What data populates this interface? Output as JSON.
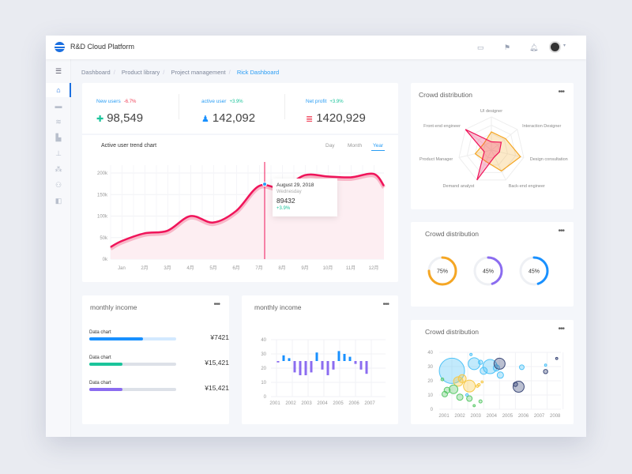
{
  "header": {
    "title": "R&D Cloud Platform",
    "icons": [
      "layout-icon",
      "flag-icon",
      "bell-icon",
      "avatar"
    ]
  },
  "sidebar": {
    "items": [
      {
        "icon": "menu-icon"
      },
      {
        "icon": "home-icon",
        "active": true
      },
      {
        "icon": "monitor-icon"
      },
      {
        "icon": "database-icon"
      },
      {
        "icon": "building-icon"
      },
      {
        "icon": "hierarchy-icon"
      },
      {
        "icon": "network-icon"
      },
      {
        "icon": "users-icon"
      },
      {
        "icon": "panel-icon"
      }
    ]
  },
  "breadcrumb": [
    "Dashboard",
    "Product library",
    "Project management",
    "Rick Dashboard"
  ],
  "stats": [
    {
      "label": "New users",
      "change": "-6.7%",
      "trend": "down",
      "value": "98,549",
      "color": "#1bc49b",
      "icon": "user-add-icon"
    },
    {
      "label": "active user",
      "change": "+3.9%",
      "trend": "up",
      "value": "142,092",
      "color": "#1890ff",
      "icon": "user-icon"
    },
    {
      "label": "Net profit",
      "change": "+3.9%",
      "trend": "up",
      "value": "1420,929",
      "color": "#f0435a",
      "icon": "database-icon"
    }
  ],
  "trend": {
    "title": "Active user trend chart",
    "tabs": [
      "Day",
      "Month",
      "Year"
    ],
    "active_tab": "Year",
    "tooltip": {
      "date": "August 29, 2018",
      "day": "Wednesday",
      "value": "89432",
      "change": "+3.9%"
    }
  },
  "chart_data": [
    {
      "type": "area",
      "title": "Active user trend chart",
      "categories": [
        "Jan",
        "2月",
        "3月",
        "4月",
        "5月",
        "6月",
        "7月",
        "8月",
        "9月",
        "10月",
        "11月",
        "12月"
      ],
      "values": [
        42,
        60,
        66,
        100,
        85,
        112,
        170,
        165,
        195,
        192,
        190,
        198
      ],
      "unit": "k",
      "ylim": [
        0,
        200
      ],
      "yticks": [
        "0k",
        "50k",
        "100k",
        "150k",
        "200k"
      ],
      "color": "#f0145a",
      "grid": true
    },
    {
      "type": "radar",
      "title": "Crowd distribution",
      "axes": [
        "UI designer",
        "Interaction Designer",
        "Design consultation",
        "Back-end engineer",
        "Demand analyst",
        "Product Manager",
        "Front-end engineer"
      ],
      "series": [
        {
          "values": [
            55,
            55,
            90,
            70,
            38,
            50,
            30
          ],
          "color": "#f5a623"
        },
        {
          "values": [
            25,
            38,
            25,
            22,
            100,
            22,
            100
          ],
          "color": "#f0145a"
        }
      ]
    },
    {
      "type": "gauge",
      "title": "Crowd distribution",
      "values": [
        75,
        45,
        45
      ],
      "labels": [
        "75%",
        "45%",
        "45%"
      ],
      "colors": [
        "#f5a623",
        "#8b6cf0",
        "#1890ff"
      ]
    },
    {
      "type": "bar",
      "title": "monthly income",
      "xticks": [
        "2001",
        "2002",
        "2003",
        "2004",
        "2005",
        "2006",
        "2007"
      ],
      "yticks": [
        "0",
        "10",
        "20",
        "30",
        "40"
      ],
      "ylim": [
        0,
        40
      ],
      "bars": [
        [
          24,
          25
        ],
        [
          25,
          29
        ],
        [
          25,
          27
        ],
        [
          17,
          25
        ],
        [
          15,
          25
        ],
        [
          15,
          25
        ],
        [
          17,
          25
        ],
        [
          25,
          31
        ],
        [
          19,
          25
        ],
        [
          15,
          25
        ],
        [
          19,
          25
        ],
        [
          25,
          32
        ],
        [
          25,
          30
        ],
        [
          25,
          28
        ],
        [
          23,
          25
        ],
        [
          19,
          25
        ],
        [
          16,
          25
        ]
      ],
      "colors": {
        "up": "#1890ff",
        "down": "#8b6cf0"
      }
    },
    {
      "type": "scatter",
      "title": "Crowd distribution",
      "xticks": [
        "2001",
        "2002",
        "2003",
        "2004",
        "2005",
        "2006",
        "2007",
        "2008"
      ],
      "yticks": [
        "0",
        "10",
        "20",
        "30",
        "40"
      ],
      "ylim": [
        0,
        40
      ],
      "xlim": [
        2001,
        2008
      ],
      "series": [
        {
          "color": "#4fc3f7",
          "points": [
            [
              2001.5,
              27,
              16
            ],
            [
              2002.7,
              38.5,
              1.5
            ],
            [
              2002.9,
              32,
              7.5
            ],
            [
              2003.3,
              33,
              2.7
            ],
            [
              2003.5,
              27,
              4.5
            ],
            [
              2003.9,
              30,
              9
            ],
            [
              2004.3,
              29,
              4
            ],
            [
              2004.55,
              24,
              4
            ],
            [
              2005.9,
              29.5,
              3
            ],
            [
              2007.4,
              31,
              1.4
            ],
            [
              2002.45,
              10,
              1.7
            ]
          ]
        },
        {
          "color": "#f7c948",
          "points": [
            [
              2001.9,
              19.5,
              6
            ],
            [
              2002.15,
              21.5,
              5
            ],
            [
              2002.6,
              16.3,
              7.5
            ],
            [
              2003.1,
              16.3,
              1.7
            ],
            [
              2003.2,
              17.2,
              1.7
            ],
            [
              2003.4,
              19.2,
              1.3
            ]
          ]
        },
        {
          "color": "#5cc96b",
          "points": [
            [
              2000.9,
              21,
              1.8
            ],
            [
              2001.05,
              10.6,
              3.5
            ],
            [
              2001.2,
              13.4,
              3.8
            ],
            [
              2001.6,
              14,
              5.5
            ],
            [
              2002,
              8.5,
              4
            ],
            [
              2002.6,
              7.5,
              3.5
            ],
            [
              2002.9,
              2.5,
              1.4
            ],
            [
              2003.3,
              5.5,
              2
            ]
          ]
        },
        {
          "color": "#3d4a7a",
          "points": [
            [
              2004.5,
              32,
              7
            ],
            [
              2005.5,
              17.5,
              2.7
            ],
            [
              2005.7,
              15.8,
              7
            ],
            [
              2007.4,
              26.5,
              2.7
            ],
            [
              2008.1,
              35.7,
              1.4
            ]
          ]
        }
      ]
    }
  ],
  "income": {
    "title": "monthly income",
    "rows": [
      {
        "label": "Data chart",
        "value": "¥7421",
        "fill": 0.62,
        "color": "#1890ff",
        "track": "#d3e9ff"
      },
      {
        "label": "Data chart",
        "value": "¥15,421",
        "fill": 0.38,
        "color": "#1bc49b",
        "track": "#dde1e8"
      },
      {
        "label": "Data chart",
        "value": "¥15,421",
        "fill": 0.38,
        "color": "#8b6cf0",
        "track": "#dde1e8"
      }
    ]
  },
  "cards": {
    "radar_title": "Crowd distribution",
    "gauge_title": "Crowd distribution",
    "bar_title": "monthly income",
    "bubble_title": "Crowd distribution",
    "more": "•••"
  }
}
